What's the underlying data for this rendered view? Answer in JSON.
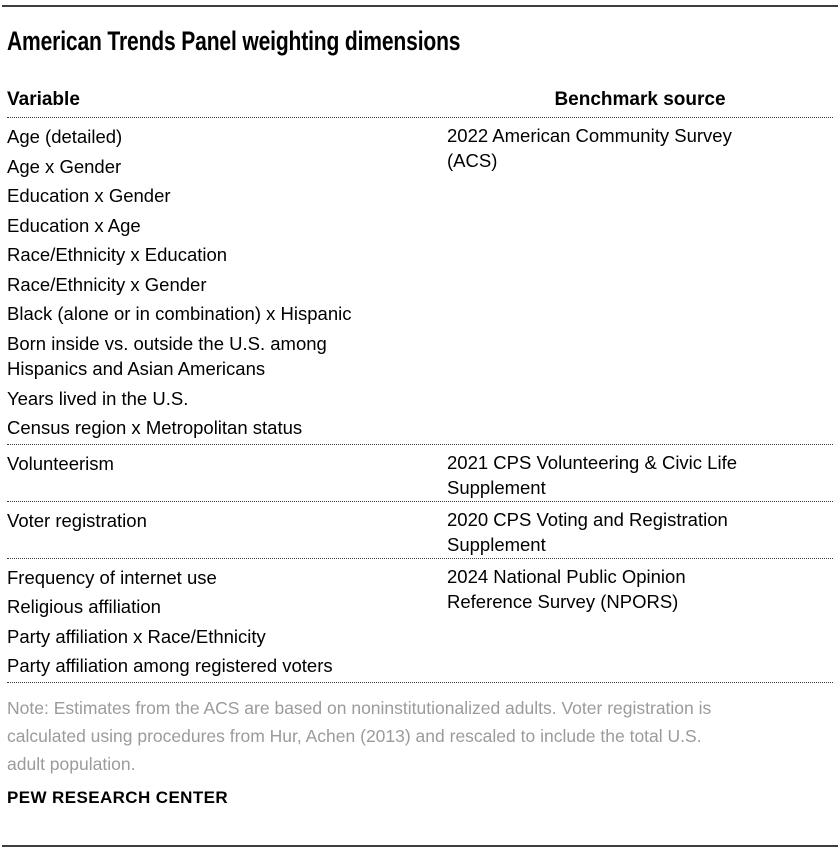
{
  "title": "American Trends Panel weighting dimensions",
  "table": {
    "headers": {
      "variable": "Variable",
      "benchmark": "Benchmark source"
    },
    "groups": [
      {
        "variables": [
          "Age (detailed)",
          "Age x Gender",
          "Education x Gender",
          "Education x Age",
          "Race/Ethnicity x Education",
          "Race/Ethnicity x Gender",
          "Black (alone or in combination) x Hispanic",
          "Born inside vs. outside the U.S. among\nHispanics and Asian Americans",
          "Years lived in the U.S.",
          "Census region x Metropolitan status"
        ],
        "source": "2022 American Community Survey\n(ACS)"
      },
      {
        "variables": [
          "Volunteerism"
        ],
        "source": "2021 CPS Volunteering & Civic Life\nSupplement"
      },
      {
        "variables": [
          "Voter registration"
        ],
        "source": "2020 CPS Voting and Registration\nSupplement"
      },
      {
        "variables": [
          "Frequency of internet use",
          "Religious affiliation",
          "Party affiliation x Race/Ethnicity",
          "Party affiliation among registered voters"
        ],
        "source": "2024 National Public Opinion\nReference Survey (NPORS)"
      }
    ]
  },
  "note": "Note: Estimates from the ACS are based on noninstitutionalized adults. Voter registration is\ncalculated using procedures from Hur, Achen (2013) and rescaled to include the total U.S.\nadult population.",
  "footer": "PEW RESEARCH CENTER",
  "colors": {
    "text": "#000000",
    "note_text": "#9b9b9b",
    "rule": "#3d3d3d",
    "dotted_separator": "#3c3c3c"
  }
}
